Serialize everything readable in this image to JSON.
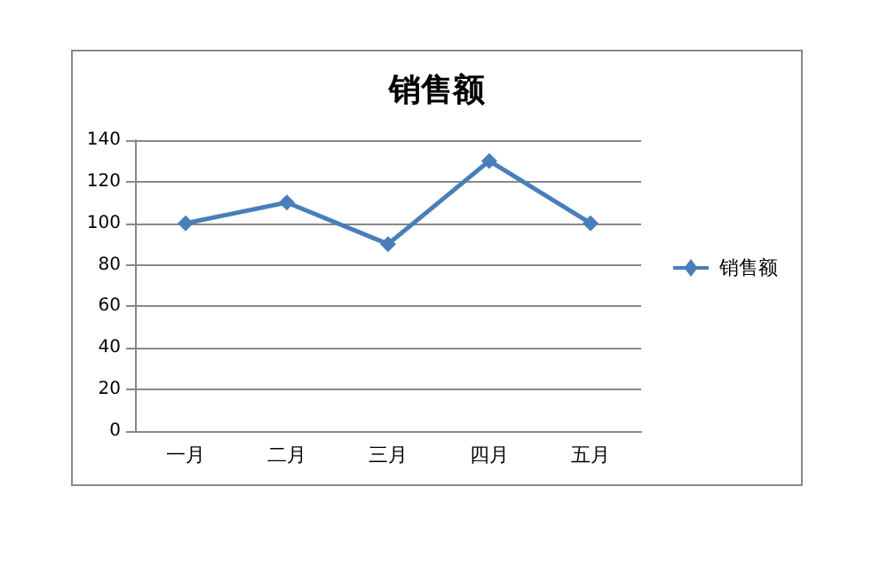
{
  "chart_data": {
    "type": "line",
    "title": "销售额",
    "categories": [
      "一月",
      "二月",
      "三月",
      "四月",
      "五月"
    ],
    "series": [
      {
        "name": "销售额",
        "color": "#4a7ebb",
        "values": [
          100,
          110,
          90,
          130,
          100
        ]
      }
    ],
    "ylim": [
      0,
      140
    ],
    "yticks": [
      0,
      20,
      40,
      60,
      80,
      100,
      120,
      140
    ],
    "grid": "y",
    "legend": "right",
    "marker": "diamond",
    "line_style": "solid"
  }
}
